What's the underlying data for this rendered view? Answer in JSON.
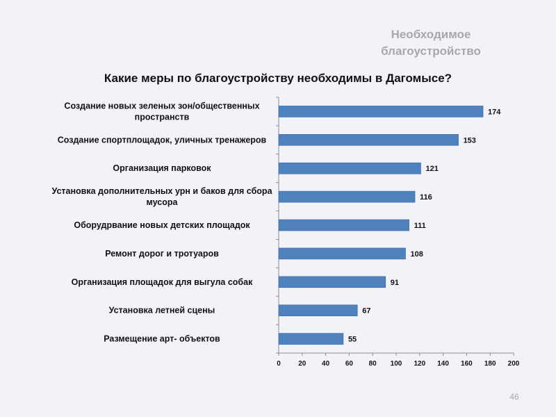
{
  "slide": {
    "heading_line1": "Необходимое",
    "heading_line2": "благоустройство",
    "page_number": "46"
  },
  "chart_data": {
    "type": "bar",
    "orientation": "horizontal",
    "title": "Какие меры по благоустройству необходимы в Дагомысе?",
    "categories": [
      "Создание новых зеленых зон/общественных пространств",
      "Создание спортплощадок, уличных тренажеров",
      "Организация парковок",
      "Установка дополнительных урн и баков для сбора мусора",
      "Оборудрвание новых детских площадок",
      "Ремонт дорог и тротуаров",
      "Организация площадок для выгула собак",
      "Установка летней сцены",
      "Размещение арт- объектов"
    ],
    "category_lines": [
      [
        "Создание новых зеленых зон/общественных",
        "пространств"
      ],
      [
        "Создание спортплощадок, уличных тренажеров"
      ],
      [
        "Организация парковок"
      ],
      [
        "Установка дополнительных урн и баков для сбора",
        "мусора"
      ],
      [
        "Оборудрвание новых детских площадок"
      ],
      [
        "Ремонт дорог и тротуаров"
      ],
      [
        "Организация площадок для выгула собак"
      ],
      [
        "Установка летней сцены"
      ],
      [
        "Размещение арт- объектов"
      ]
    ],
    "values": [
      174,
      153,
      121,
      116,
      111,
      108,
      91,
      67,
      55
    ],
    "xlim": [
      0,
      200
    ],
    "xticks": [
      0,
      20,
      40,
      60,
      80,
      100,
      120,
      140,
      160,
      180,
      200
    ],
    "grid": false,
    "legend": "none",
    "bar_color": "#4f81bd"
  }
}
